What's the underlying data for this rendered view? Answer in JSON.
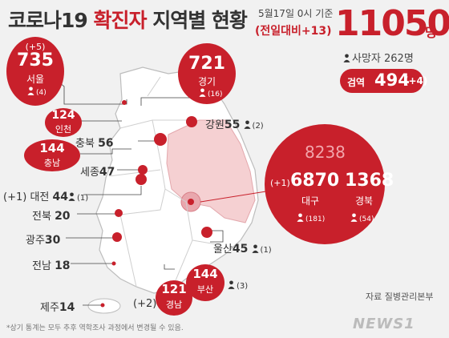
{
  "header": {
    "title_a": "코로나19 ",
    "title_b": "확진자",
    "title_c": " 지역별 현황",
    "date": "5월17일 0시 기준",
    "delta": "(전일대비+13)",
    "total": "11050",
    "unit": "명",
    "deaths": "사망자 262명",
    "quarantine_label": "검역",
    "quarantine_value": "494",
    "quarantine_delta": "(+4)"
  },
  "daegu_group": {
    "total": "8238",
    "daegu_delta": "(+1)",
    "daegu_value": "6870",
    "daegu_name": "대구",
    "daegu_deaths": "(181)",
    "gyeongbuk_value": "1368",
    "gyeongbuk_name": "경북",
    "gyeongbuk_deaths": "(54)"
  },
  "chart_data": {
    "type": "table",
    "title": "코로나19 확진자 지역별 현황",
    "as_of": "5월17일 0시 기준",
    "total": 11050,
    "total_delta": 13,
    "deaths": 262,
    "quarantine": {
      "value": 494,
      "delta": 4
    },
    "regions": [
      {
        "name": "서울",
        "value": 735,
        "delta": "(+5)",
        "deaths": "(4)"
      },
      {
        "name": "경기",
        "value": 721,
        "deaths": "(16)"
      },
      {
        "name": "인천",
        "value": 124
      },
      {
        "name": "강원",
        "value": 55,
        "deaths": "(2)"
      },
      {
        "name": "충북",
        "value": 56
      },
      {
        "name": "충남",
        "value": 144
      },
      {
        "name": "세종",
        "value": 47
      },
      {
        "name": "대전",
        "value": 44,
        "delta": "(+1)",
        "deaths": "(1)"
      },
      {
        "name": "전북",
        "value": 20
      },
      {
        "name": "광주",
        "value": 30
      },
      {
        "name": "전남",
        "value": 18
      },
      {
        "name": "제주",
        "value": 14
      },
      {
        "name": "울산",
        "value": 45,
        "deaths": "(1)"
      },
      {
        "name": "부산",
        "value": 144,
        "deaths": "(3)"
      },
      {
        "name": "경남",
        "value": 121,
        "delta": "(+2)"
      },
      {
        "name": "대구",
        "value": 6870,
        "delta": "(+1)",
        "deaths": "(181)"
      },
      {
        "name": "경북",
        "value": 1368,
        "deaths": "(54)"
      }
    ],
    "daegu_gyeongbuk_total": 8238
  },
  "footer": {
    "source": "자료 질병관리본부",
    "note": "*상기 통계는 모두 추후 역학조사 과정에서 변경될 수 있음.",
    "watermark": "NEWS1"
  },
  "colors": {
    "accent": "#c8202b",
    "map_fill": "#ffffff",
    "map_stroke": "#bdbdbd",
    "daegu_fill": "#f5d0d2"
  }
}
